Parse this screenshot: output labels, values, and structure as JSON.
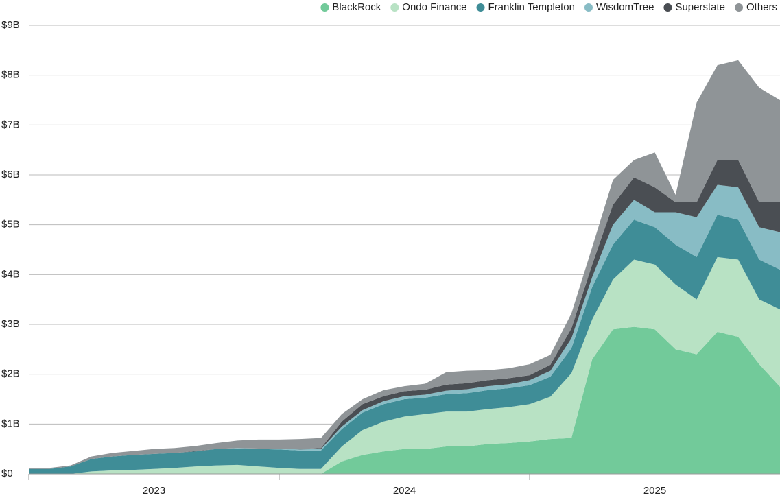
{
  "chart_data": {
    "type": "stacked_area",
    "x": [
      2023.0,
      2023.083,
      2023.167,
      2023.25,
      2023.333,
      2023.417,
      2023.5,
      2023.583,
      2023.667,
      2023.75,
      2023.833,
      2023.917,
      2024.0,
      2024.083,
      2024.167,
      2024.25,
      2024.333,
      2024.417,
      2024.5,
      2024.583,
      2024.667,
      2024.75,
      2024.833,
      2024.917,
      2025.0,
      2025.083,
      2025.167,
      2025.25,
      2025.333,
      2025.417,
      2025.5,
      2025.583,
      2025.667,
      2025.75,
      2025.833,
      2025.917,
      2026.0
    ],
    "series": [
      {
        "name": "BlackRock",
        "color": "#72ca9a",
        "values": [
          0,
          0,
          0,
          0,
          0,
          0,
          0,
          0,
          0,
          0,
          0,
          0,
          0,
          0,
          0,
          0.25,
          0.38,
          0.45,
          0.5,
          0.5,
          0.55,
          0.55,
          0.6,
          0.62,
          0.65,
          0.7,
          0.72,
          2.3,
          2.9,
          2.95,
          2.9,
          2.5,
          2.4,
          2.85,
          2.75,
          2.2,
          1.75
        ]
      },
      {
        "name": "Ondo Finance",
        "color": "#b8e2c4",
        "values": [
          0,
          0,
          0,
          0.05,
          0.07,
          0.08,
          0.1,
          0.12,
          0.15,
          0.17,
          0.18,
          0.15,
          0.12,
          0.1,
          0.1,
          0.3,
          0.5,
          0.6,
          0.65,
          0.7,
          0.7,
          0.7,
          0.7,
          0.72,
          0.75,
          0.85,
          1.3,
          0.8,
          1.0,
          1.35,
          1.3,
          1.3,
          1.1,
          1.5,
          1.55,
          1.3,
          1.55
        ]
      },
      {
        "name": "Franklin Templeton",
        "color": "#3f8d97",
        "values": [
          0.1,
          0.1,
          0.15,
          0.25,
          0.28,
          0.3,
          0.3,
          0.3,
          0.3,
          0.33,
          0.33,
          0.35,
          0.37,
          0.37,
          0.37,
          0.35,
          0.35,
          0.35,
          0.35,
          0.33,
          0.35,
          0.37,
          0.38,
          0.38,
          0.38,
          0.4,
          0.5,
          0.65,
          0.7,
          0.8,
          0.75,
          0.8,
          0.85,
          0.85,
          0.8,
          0.8,
          0.8
        ]
      },
      {
        "name": "WisdomTree",
        "color": "#88bcc5",
        "values": [
          0,
          0,
          0,
          0,
          0,
          0,
          0,
          0,
          0,
          0,
          0.01,
          0.01,
          0.02,
          0.02,
          0.03,
          0.05,
          0.05,
          0.06,
          0.06,
          0.06,
          0.07,
          0.08,
          0.08,
          0.08,
          0.1,
          0.12,
          0.2,
          0.2,
          0.4,
          0.4,
          0.3,
          0.65,
          0.8,
          0.6,
          0.65,
          0.65,
          0.75
        ]
      },
      {
        "name": "Superstate",
        "color": "#4a4e53",
        "values": [
          0,
          0,
          0,
          0,
          0,
          0,
          0,
          0,
          0.01,
          0,
          0,
          0,
          0,
          0.01,
          0.02,
          0.1,
          0.12,
          0.1,
          0.1,
          0.1,
          0.12,
          0.12,
          0.12,
          0.12,
          0.1,
          0.12,
          0.2,
          0.25,
          0.4,
          0.45,
          0.5,
          0.2,
          0.3,
          0.5,
          0.55,
          0.5,
          0.6
        ]
      },
      {
        "name": "Others",
        "color": "#8f9497",
        "values": [
          0.01,
          0.02,
          0.02,
          0.05,
          0.07,
          0.08,
          0.1,
          0.1,
          0.1,
          0.12,
          0.15,
          0.18,
          0.18,
          0.2,
          0.2,
          0.15,
          0.1,
          0.12,
          0.1,
          0.12,
          0.25,
          0.25,
          0.2,
          0.2,
          0.22,
          0.2,
          0.3,
          0.35,
          0.5,
          0.35,
          0.7,
          0.15,
          2.0,
          1.9,
          2.0,
          2.3,
          2.05
        ]
      }
    ],
    "xlim": [
      2023,
      2026
    ],
    "xticks": [
      2023,
      2024,
      2025
    ],
    "ylim": [
      0,
      9
    ],
    "yticks": [
      {
        "value": 0,
        "label": "$0"
      },
      {
        "value": 1,
        "label": "$1B"
      },
      {
        "value": 2,
        "label": "$2B"
      },
      {
        "value": 3,
        "label": "$3B"
      },
      {
        "value": 4,
        "label": "$4B"
      },
      {
        "value": 5,
        "label": "$5B"
      },
      {
        "value": 6,
        "label": "$6B"
      },
      {
        "value": 7,
        "label": "$7B"
      },
      {
        "value": 8,
        "label": "$8B"
      },
      {
        "value": 9,
        "label": "$9B"
      }
    ],
    "grid": true,
    "legend": "top-right"
  }
}
